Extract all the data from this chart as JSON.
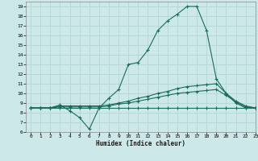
{
  "xlabel": "Humidex (Indice chaleur)",
  "background_color": "#cde8e8",
  "grid_color": "#b8d8d8",
  "line_color": "#1a6b5a",
  "xlim": [
    -0.5,
    23
  ],
  "ylim": [
    6,
    19.5
  ],
  "xticks": [
    0,
    1,
    2,
    3,
    4,
    5,
    6,
    7,
    8,
    9,
    10,
    11,
    12,
    13,
    14,
    15,
    16,
    17,
    18,
    19,
    20,
    21,
    22,
    23
  ],
  "yticks": [
    6,
    7,
    8,
    9,
    10,
    11,
    12,
    13,
    14,
    15,
    16,
    17,
    18,
    19
  ],
  "lines": [
    {
      "x": [
        0,
        1,
        2,
        3,
        4,
        5,
        6,
        7,
        8,
        9,
        10,
        11,
        12,
        13,
        14,
        15,
        16,
        17,
        18,
        19,
        20,
        21,
        22,
        23
      ],
      "y": [
        8.5,
        8.5,
        8.5,
        8.8,
        8.2,
        7.5,
        6.3,
        8.5,
        9.5,
        10.4,
        13.0,
        13.2,
        14.5,
        16.5,
        17.5,
        18.2,
        19.0,
        19.0,
        16.5,
        11.5,
        10.0,
        9.0,
        8.5,
        8.5
      ]
    },
    {
      "x": [
        0,
        1,
        2,
        3,
        4,
        5,
        6,
        7,
        8,
        9,
        10,
        11,
        12,
        13,
        14,
        15,
        16,
        17,
        18,
        19,
        20,
        21,
        22,
        23
      ],
      "y": [
        8.5,
        8.5,
        8.5,
        8.5,
        8.5,
        8.5,
        8.5,
        8.5,
        8.5,
        8.5,
        8.5,
        8.5,
        8.5,
        8.5,
        8.5,
        8.5,
        8.5,
        8.5,
        8.5,
        8.5,
        8.5,
        8.5,
        8.5,
        8.5
      ]
    },
    {
      "x": [
        0,
        1,
        2,
        3,
        4,
        5,
        6,
        7,
        8,
        9,
        10,
        11,
        12,
        13,
        14,
        15,
        16,
        17,
        18,
        19,
        20,
        21,
        22,
        23
      ],
      "y": [
        8.5,
        8.5,
        8.5,
        8.7,
        8.7,
        8.7,
        8.7,
        8.7,
        8.8,
        9.0,
        9.2,
        9.5,
        9.7,
        10.0,
        10.2,
        10.5,
        10.7,
        10.8,
        10.9,
        11.0,
        10.0,
        9.2,
        8.7,
        8.5
      ]
    },
    {
      "x": [
        0,
        1,
        2,
        3,
        4,
        5,
        6,
        7,
        8,
        9,
        10,
        11,
        12,
        13,
        14,
        15,
        16,
        17,
        18,
        19,
        20,
        21,
        22,
        23
      ],
      "y": [
        8.5,
        8.5,
        8.5,
        8.6,
        8.6,
        8.6,
        8.6,
        8.6,
        8.7,
        8.9,
        9.0,
        9.2,
        9.4,
        9.6,
        9.8,
        10.0,
        10.1,
        10.2,
        10.3,
        10.4,
        9.8,
        9.1,
        8.6,
        8.5
      ]
    }
  ]
}
